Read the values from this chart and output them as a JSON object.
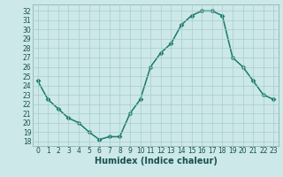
{
  "x": [
    0,
    1,
    2,
    3,
    4,
    5,
    6,
    7,
    8,
    9,
    10,
    11,
    12,
    13,
    14,
    15,
    16,
    17,
    18,
    19,
    20,
    21,
    22,
    23
  ],
  "y": [
    24.5,
    22.5,
    21.5,
    20.5,
    20.0,
    19.0,
    18.2,
    18.5,
    18.5,
    21.0,
    22.5,
    26.0,
    27.5,
    28.5,
    30.5,
    31.5,
    32.0,
    32.0,
    31.5,
    27.0,
    26.0,
    24.5,
    23.0,
    22.5
  ],
  "line_color": "#1a7a6e",
  "marker": "D",
  "markersize": 2.5,
  "bg_color": "#cce8e8",
  "grid_color": "#aacccc",
  "xlabel": "Humidex (Indice chaleur)",
  "ylim": [
    17.5,
    32.7
  ],
  "xlim": [
    -0.5,
    23.5
  ],
  "yticks": [
    18,
    19,
    20,
    21,
    22,
    23,
    24,
    25,
    26,
    27,
    28,
    29,
    30,
    31,
    32
  ],
  "xticks": [
    0,
    1,
    2,
    3,
    4,
    5,
    6,
    7,
    8,
    9,
    10,
    11,
    12,
    13,
    14,
    15,
    16,
    17,
    18,
    19,
    20,
    21,
    22,
    23
  ],
  "tick_fontsize": 5.5,
  "xlabel_fontsize": 7.0,
  "linewidth": 1.1
}
